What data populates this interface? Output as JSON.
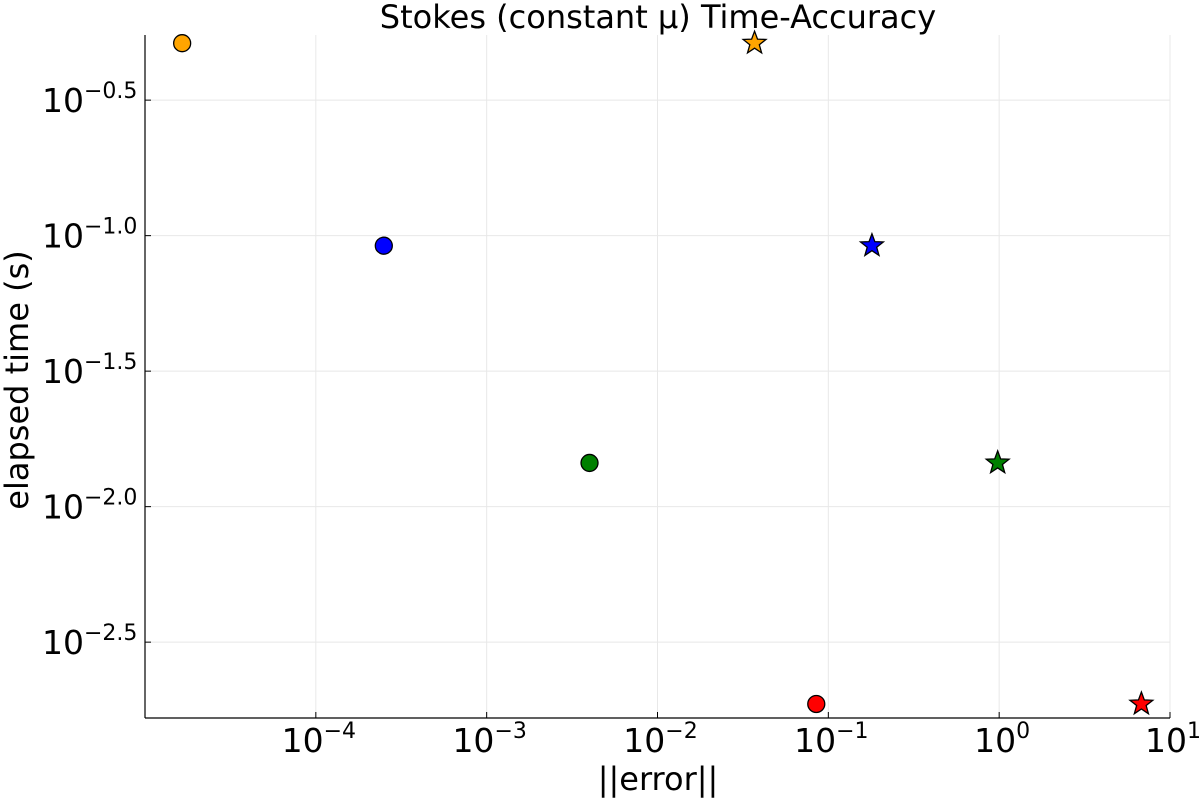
{
  "chart_data": {
    "type": "scatter",
    "title": "Stokes (constant μ) Time-Accuracy",
    "xlabel": "||error||",
    "ylabel": "elapsed time (s)",
    "x_scale": "log10",
    "y_scale": "log10",
    "xlim": [
      1e-05,
      10
    ],
    "ylim": [
      0.00166,
      0.55
    ],
    "grid": true,
    "legend": "none",
    "x_ticks": [
      {
        "value": 0.0001,
        "base": "10",
        "exp": "−4"
      },
      {
        "value": 0.001,
        "base": "10",
        "exp": "−3"
      },
      {
        "value": 0.01,
        "base": "10",
        "exp": "−2"
      },
      {
        "value": 0.1,
        "base": "10",
        "exp": "−1"
      },
      {
        "value": 1,
        "base": "10",
        "exp": "0"
      },
      {
        "value": 10,
        "base": "10",
        "exp": "1"
      }
    ],
    "y_ticks": [
      {
        "value": 0.31623,
        "base": "10",
        "exp": "−0.5"
      },
      {
        "value": 0.1,
        "base": "10",
        "exp": "−1.0"
      },
      {
        "value": 0.031623,
        "base": "10",
        "exp": "−1.5"
      },
      {
        "value": 0.01,
        "base": "10",
        "exp": "−2.0"
      },
      {
        "value": 0.0031623,
        "base": "10",
        "exp": "−2.5"
      }
    ],
    "series": [
      {
        "marker": "circle",
        "color": "#FFA500",
        "points": [
          {
            "x": 1.65e-05,
            "y": 0.513
          }
        ]
      },
      {
        "marker": "star",
        "color": "#FFA500",
        "points": [
          {
            "x": 0.037,
            "y": 0.513
          }
        ]
      },
      {
        "marker": "circle",
        "color": "#0000FF",
        "points": [
          {
            "x": 0.00025,
            "y": 0.0918
          }
        ]
      },
      {
        "marker": "star",
        "color": "#0000FF",
        "points": [
          {
            "x": 0.18,
            "y": 0.0918
          }
        ]
      },
      {
        "marker": "circle",
        "color": "#008000",
        "points": [
          {
            "x": 0.004,
            "y": 0.0145
          }
        ]
      },
      {
        "marker": "star",
        "color": "#008000",
        "points": [
          {
            "x": 0.98,
            "y": 0.0145
          }
        ]
      },
      {
        "marker": "circle",
        "color": "#FF0000",
        "points": [
          {
            "x": 0.085,
            "y": 0.00187
          }
        ]
      },
      {
        "marker": "star",
        "color": "#FF0000",
        "points": [
          {
            "x": 6.8,
            "y": 0.00187
          }
        ]
      }
    ]
  }
}
